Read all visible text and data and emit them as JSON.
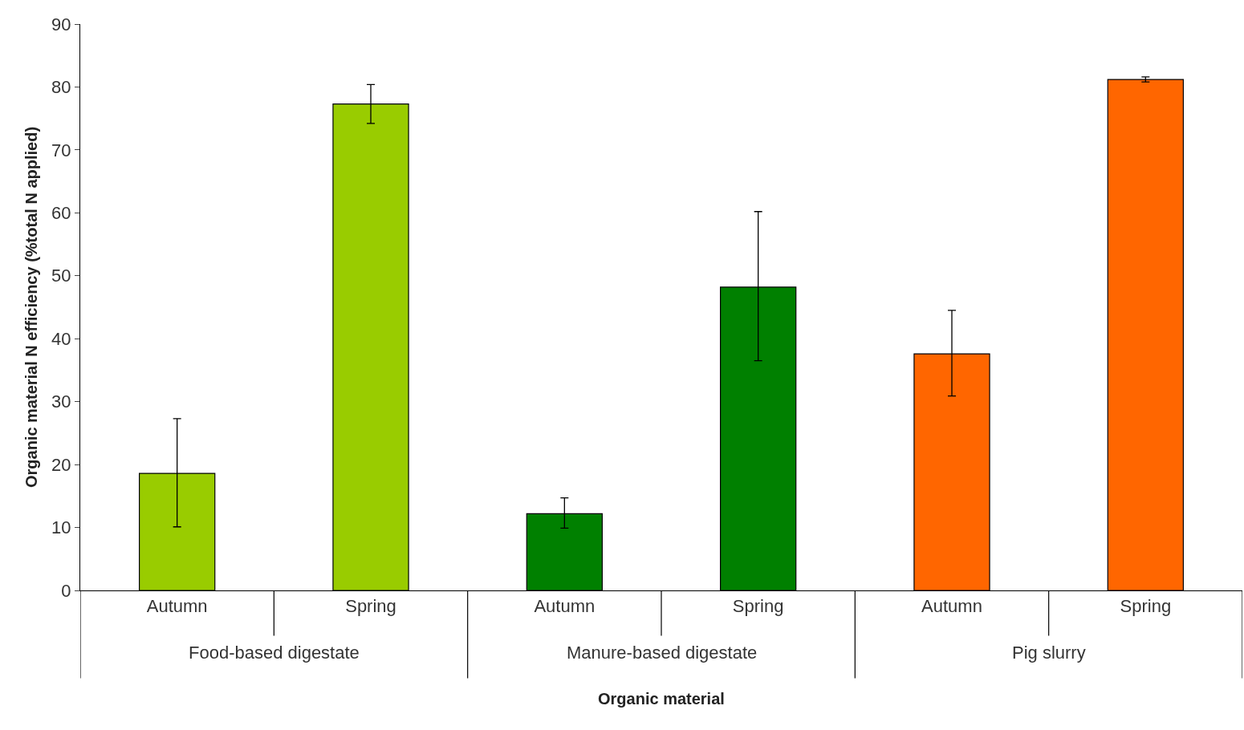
{
  "chart_data": {
    "type": "bar",
    "xlabel": "Organic material",
    "ylabel": "Organic material N efficiency (%total N applied)",
    "categories": [
      "Autumn",
      "Spring",
      "Autumn",
      "Spring",
      "Autumn",
      "Spring"
    ],
    "values": [
      18.6,
      77.3,
      12.2,
      48.2,
      37.6,
      81.2
    ],
    "colors": [
      "#99cc00",
      "#99cc00",
      "#008000",
      "#008000",
      "#ff6600",
      "#ff6600"
    ],
    "errors": [
      [
        10.1,
        27.3
      ],
      [
        74.2,
        80.4
      ],
      [
        9.9,
        14.7
      ],
      [
        36.5,
        60.2
      ],
      [
        30.9,
        44.5
      ],
      [
        80.8,
        81.6
      ]
    ],
    "annotations": [
      "Food-based digestate",
      "Manure-based digestate",
      "Pig slurry"
    ],
    "ylim": [
      0,
      90
    ],
    "yticks": [
      0,
      10,
      20,
      30,
      40,
      50,
      60,
      70,
      80,
      90
    ]
  }
}
